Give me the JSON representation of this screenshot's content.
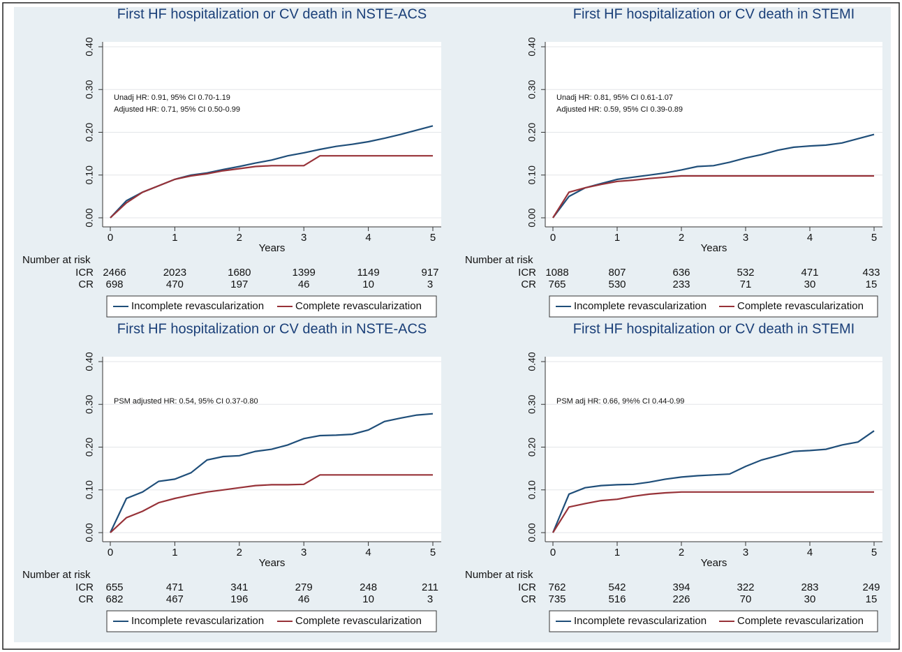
{
  "chart_data": [
    {
      "type": "line",
      "title": "First HF hospitalization or CV death in NSTE-ACS",
      "x_label": "Years",
      "annotations": [
        "Unadj HR: 0.91, 95% CI 0.70-1.19",
        "Adjusted HR: 0.71, 95% CI 0.50-0.99"
      ],
      "x": [
        0,
        0.25,
        0.5,
        0.75,
        1,
        1.25,
        1.5,
        1.75,
        2,
        2.25,
        2.5,
        2.75,
        3,
        3.25,
        3.5,
        3.75,
        4,
        4.25,
        4.5,
        4.75,
        5
      ],
      "series": [
        {
          "name": "Incomplete revascularization",
          "color": "#1f4e79",
          "values": [
            0,
            0.04,
            0.06,
            0.075,
            0.09,
            0.1,
            0.105,
            0.113,
            0.12,
            0.128,
            0.135,
            0.145,
            0.152,
            0.16,
            0.167,
            0.172,
            0.178,
            0.186,
            0.195,
            0.205,
            0.215
          ]
        },
        {
          "name": "Complete revascularization",
          "color": "#973238",
          "values": [
            0,
            0.035,
            0.06,
            0.075,
            0.09,
            0.098,
            0.103,
            0.11,
            0.115,
            0.12,
            0.122,
            0.122,
            0.122,
            0.145,
            0.145,
            0.145,
            0.145,
            0.145,
            0.145,
            0.145,
            0.145
          ]
        }
      ],
      "xlim": [
        0,
        5
      ],
      "xticks": [
        0,
        1,
        2,
        3,
        4,
        5
      ],
      "ylim": [
        0,
        0.4
      ],
      "yticks": [
        {
          "value": 0,
          "label": "0.00"
        },
        {
          "value": 0.1,
          "label": "0.10"
        },
        {
          "value": 0.2,
          "label": "0.20"
        },
        {
          "value": 0.3,
          "label": "0.30"
        },
        {
          "value": 0.4,
          "label": "0.40"
        }
      ],
      "grid": true,
      "risk_table": {
        "label": "Number at risk",
        "rows": [
          {
            "name": "ICR",
            "values": [
              2466,
              2023,
              1680,
              1399,
              1149,
              917
            ]
          },
          {
            "name": "CR",
            "values": [
              698,
              470,
              197,
              46,
              10,
              3
            ]
          }
        ]
      }
    },
    {
      "type": "line",
      "title": "First HF hospitalization or CV death in STEMI",
      "x_label": "Years",
      "annotations": [
        "Unadj HR: 0.81, 95% CI 0.61-1.07",
        "Adjusted HR: 0.59, 95% CI 0.39-0.89"
      ],
      "x": [
        0,
        0.25,
        0.5,
        0.75,
        1,
        1.25,
        1.5,
        1.75,
        2,
        2.25,
        2.5,
        2.75,
        3,
        3.25,
        3.5,
        3.75,
        4,
        4.25,
        4.5,
        4.75,
        5
      ],
      "series": [
        {
          "name": "Incomplete revascularization",
          "color": "#1f4e79",
          "values": [
            0,
            0.05,
            0.07,
            0.08,
            0.09,
            0.095,
            0.1,
            0.105,
            0.112,
            0.12,
            0.122,
            0.13,
            0.14,
            0.148,
            0.158,
            0.165,
            0.168,
            0.17,
            0.175,
            0.185,
            0.195
          ]
        },
        {
          "name": "Complete revascularization",
          "color": "#973238",
          "values": [
            0,
            0.06,
            0.07,
            0.078,
            0.085,
            0.088,
            0.092,
            0.095,
            0.098,
            0.098,
            0.098,
            0.098,
            0.098,
            0.098,
            0.098,
            0.098,
            0.098,
            0.098,
            0.098,
            0.098,
            0.098
          ]
        }
      ],
      "xlim": [
        0,
        5
      ],
      "xticks": [
        0,
        1,
        2,
        3,
        4,
        5
      ],
      "ylim": [
        0,
        0.4
      ],
      "yticks": [
        {
          "value": 0,
          "label": "0.00"
        },
        {
          "value": 0.1,
          "label": "0.10"
        },
        {
          "value": 0.2,
          "label": "0.20"
        },
        {
          "value": 0.3,
          "label": "0.30"
        },
        {
          "value": 0.4,
          "label": "0.40"
        }
      ],
      "grid": true,
      "risk_table": {
        "label": "Number at risk",
        "rows": [
          {
            "name": "ICR",
            "values": [
              1088,
              807,
              636,
              532,
              471,
              433
            ]
          },
          {
            "name": "CR",
            "values": [
              765,
              530,
              233,
              71,
              30,
              15
            ]
          }
        ]
      }
    },
    {
      "type": "line",
      "title": "First HF hospitalization or CV death in NSTE-ACS",
      "x_label": "Years",
      "annotations": [
        "PSM adjusted HR: 0.54, 95% CI 0.37-0.80"
      ],
      "x": [
        0,
        0.25,
        0.5,
        0.75,
        1,
        1.25,
        1.5,
        1.75,
        2,
        2.25,
        2.5,
        2.75,
        3,
        3.25,
        3.5,
        3.75,
        4,
        4.25,
        4.5,
        4.75,
        5
      ],
      "series": [
        {
          "name": "Incomplete revascularization",
          "color": "#1f4e79",
          "values": [
            0,
            0.08,
            0.095,
            0.12,
            0.125,
            0.14,
            0.17,
            0.178,
            0.18,
            0.19,
            0.195,
            0.205,
            0.22,
            0.227,
            0.228,
            0.23,
            0.24,
            0.26,
            0.268,
            0.275,
            0.278
          ]
        },
        {
          "name": "Complete revascularization",
          "color": "#973238",
          "values": [
            0,
            0.035,
            0.05,
            0.07,
            0.08,
            0.088,
            0.095,
            0.1,
            0.105,
            0.11,
            0.112,
            0.112,
            0.113,
            0.135,
            0.135,
            0.135,
            0.135,
            0.135,
            0.135,
            0.135,
            0.135
          ]
        }
      ],
      "xlim": [
        0,
        5
      ],
      "xticks": [
        0,
        1,
        2,
        3,
        4,
        5
      ],
      "ylim": [
        0,
        0.4
      ],
      "yticks": [
        {
          "value": 0,
          "label": "0.00"
        },
        {
          "value": 0.1,
          "label": "0.10"
        },
        {
          "value": 0.2,
          "label": "0.20"
        },
        {
          "value": 0.3,
          "label": "0.30"
        },
        {
          "value": 0.4,
          "label": "0.40"
        }
      ],
      "grid": true,
      "risk_table": {
        "label": "Number at risk",
        "rows": [
          {
            "name": "ICR",
            "values": [
              655,
              471,
              341,
              279,
              248,
              211
            ]
          },
          {
            "name": "CR",
            "values": [
              682,
              467,
              196,
              46,
              10,
              3
            ]
          }
        ]
      }
    },
    {
      "type": "line",
      "title": "First HF hospitalization or CV death in STEMI",
      "x_label": "Years",
      "annotations": [
        "PSM adj HR: 0.66, 9%% CI 0.44-0.99"
      ],
      "x": [
        0,
        0.25,
        0.5,
        0.75,
        1,
        1.25,
        1.5,
        1.75,
        2,
        2.25,
        2.5,
        2.75,
        3,
        3.25,
        3.5,
        3.75,
        4,
        4.25,
        4.5,
        4.75,
        5
      ],
      "series": [
        {
          "name": "Incomplete revascularization",
          "color": "#1f4e79",
          "values": [
            0,
            0.09,
            0.105,
            0.11,
            0.112,
            0.113,
            0.118,
            0.125,
            0.13,
            0.133,
            0.135,
            0.137,
            0.155,
            0.17,
            0.18,
            0.19,
            0.192,
            0.195,
            0.205,
            0.212,
            0.238
          ]
        },
        {
          "name": "Complete revascularization",
          "color": "#973238",
          "values": [
            0,
            0.06,
            0.068,
            0.075,
            0.078,
            0.085,
            0.09,
            0.093,
            0.095,
            0.095,
            0.095,
            0.095,
            0.095,
            0.095,
            0.095,
            0.095,
            0.095,
            0.095,
            0.095,
            0.095,
            0.095
          ]
        }
      ],
      "xlim": [
        0,
        5
      ],
      "xticks": [
        0,
        1,
        2,
        3,
        4,
        5
      ],
      "ylim": [
        0,
        0.4
      ],
      "yticks": [
        {
          "value": 0,
          "label": "0.00"
        },
        {
          "value": 0.1,
          "label": "0.10"
        },
        {
          "value": 0.2,
          "label": "0.20"
        },
        {
          "value": 0.3,
          "label": "0.30"
        },
        {
          "value": 0.4,
          "label": "0.40"
        }
      ],
      "grid": true,
      "risk_table": {
        "label": "Number at risk",
        "rows": [
          {
            "name": "ICR",
            "values": [
              762,
              542,
              394,
              322,
              283,
              249
            ]
          },
          {
            "name": "CR",
            "values": [
              735,
              516,
              226,
              70,
              30,
              15
            ]
          }
        ]
      }
    }
  ]
}
